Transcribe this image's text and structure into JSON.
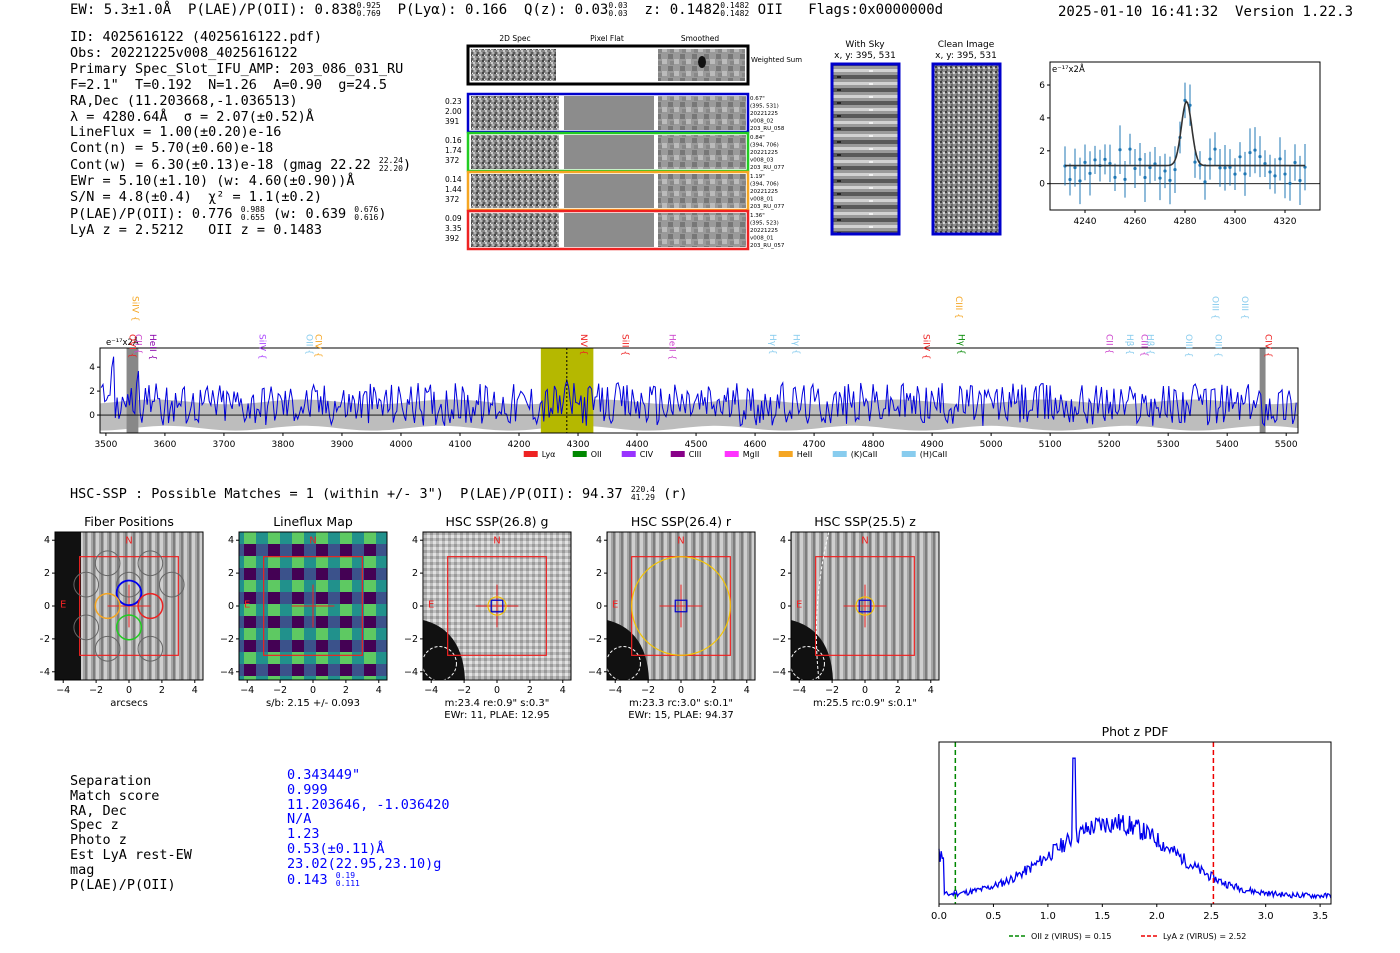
{
  "header": {
    "ew": "EW: 5.3±1.0Å",
    "plae_label": "P(LAE)/P(OII):",
    "plae_val": "0.838",
    "plae_hi": "0.925",
    "plae_lo": "0.769",
    "plya": "P(Lyα): 0.166",
    "qz_label": "Q(z): 0.03",
    "qz_hi": "0.03",
    "qz_lo": "0.03",
    "z_label": "z: 0.1482",
    "z_hi": "0.1482",
    "z_lo": "0.1482",
    "z_line": "OII",
    "flags": "Flags:0x0000000d",
    "datetime": "2025-01-10 16:41:32",
    "version": "Version 1.22.3"
  },
  "info": {
    "id": "ID: 4025616122 (4025616122.pdf)",
    "obs": "Obs: 20221225v008_4025616122",
    "primary": "Primary Spec_Slot_IFU_AMP: 203_086_031_RU",
    "params": "F=2.1\"  T=0.192  N=1.26  A=0.90  g=24.5",
    "radec": "RA,Dec (11.203668,-1.036513)",
    "lambda": "λ = 4280.64Å  σ = 2.07(±0.52)Å",
    "lineflux": "LineFlux = 1.00(±0.20)e-16",
    "contn": "Cont(n) = 5.70(±0.60)e-18",
    "contw": "Cont(w) = 6.30(±0.13)e-18 (gmag 22.22",
    "contw_hi": "22.24",
    "contw_lo": "22.20",
    "contw_end": ")",
    "ewr": "EWr = 5.10(±1.10) (w: 4.60(±0.90))Å",
    "sn": "S/N = 4.8(±0.4)  χ² = 1.1(±0.2)",
    "plae": "P(LAE)/P(OII): 0.776",
    "plae_hi": "0.988",
    "plae_lo": "0.655",
    "plae_w": "(w: 0.639",
    "plae_w_hi": "0.676",
    "plae_w_lo": "0.616",
    "plae_w_end": ")",
    "lyaz": "LyA z = 2.5212   OII z = 0.1483"
  },
  "cutouts": {
    "col_headers": [
      "2D Spec",
      "Pixel Flat",
      "Smoothed"
    ],
    "weighted_sum": "Weighted Sum",
    "rows": [
      {
        "left": [
          "0.23",
          "2.00",
          "391"
        ],
        "right": [
          "0.67\"",
          "(395, 531)",
          "20221225",
          "v008_02",
          "203_RU_058"
        ],
        "color": "#0000cc"
      },
      {
        "left": [
          "0.16",
          "1.74",
          "372"
        ],
        "right": [
          "0.84\"",
          "(394, 706)",
          "20221225",
          "v008_03",
          "203_RU_077"
        ],
        "color": "#22cc22"
      },
      {
        "left": [
          "0.14",
          "1.44",
          "372"
        ],
        "right": [
          "1.19\"",
          "(394, 706)",
          "20221225",
          "v008_01",
          "203_RU_077"
        ],
        "color": "#f5a623"
      },
      {
        "left": [
          "0.09",
          "3.35",
          "392"
        ],
        "right": [
          "1.36\"",
          "(395, 523)",
          "20221225",
          "v008_01",
          "203_RU_057"
        ],
        "color": "#ee2222"
      }
    ],
    "with_sky": "With Sky",
    "with_sky_xy": "x, y: 395, 531",
    "clean": "Clean Image",
    "clean_xy": "x, y: 395, 531"
  },
  "line_fit": {
    "ylabel": "e⁻¹⁷x2Å",
    "xticks": [
      4240,
      4260,
      4280,
      4300,
      4320
    ],
    "yticks": [
      0,
      2,
      4,
      6
    ],
    "xlim": [
      4226,
      4334
    ],
    "ylim": [
      -1.6,
      7.4
    ],
    "continuum": 1.1,
    "peak_x": 4280.6,
    "peak_amp": 3.9,
    "sigma": 2.07
  },
  "spectrum": {
    "ylabel": "e⁻¹⁷x2Å",
    "xticks": [
      3500,
      3600,
      3700,
      3800,
      3900,
      4000,
      4100,
      4200,
      4300,
      4400,
      4500,
      4600,
      4700,
      4800,
      4900,
      5000,
      5100,
      5200,
      5300,
      5400,
      5500
    ],
    "yticks": [
      0,
      2,
      4
    ],
    "xlim": [
      3490,
      5520
    ],
    "ylim": [
      -1.5,
      5.6
    ],
    "highlight_range": [
      4237,
      4326
    ],
    "line_center": 4281,
    "masked": [
      [
        3535,
        3555
      ],
      [
        5455,
        5465
      ]
    ],
    "line_marks": [
      {
        "label": "CII",
        "x": 3545,
        "color": "#cc44cc",
        "tier": 2
      },
      {
        "label": "SiIV",
        "x": 3540,
        "color": "#f5a623",
        "tier": 1
      },
      {
        "label": "OVI",
        "x": 3535,
        "color": "#ee2222",
        "tier": 2
      },
      {
        "label": "HeII",
        "x": 3570,
        "color": "#8800aa",
        "tier": 2
      },
      {
        "label": "SiIV",
        "x": 3755,
        "color": "#aa44ff",
        "tier": 2
      },
      {
        "label": "OII",
        "x": 3835,
        "color": "#88ccee",
        "tier": 2
      },
      {
        "label": "CIV",
        "x": 3850,
        "color": "#f5a623",
        "tier": 2
      },
      {
        "label": "NV",
        "x": 4300,
        "color": "#ee2222",
        "tier": 2
      },
      {
        "label": "SiII",
        "x": 4370,
        "color": "#ee2222",
        "tier": 2
      },
      {
        "label": "HeII",
        "x": 4450,
        "color": "#cc44cc",
        "tier": 2
      },
      {
        "label": "Hγ",
        "x": 4620,
        "color": "#88ccee",
        "tier": 2
      },
      {
        "label": "Hγ",
        "x": 4660,
        "color": "#88ccee",
        "tier": 2
      },
      {
        "label": "SiIV",
        "x": 4880,
        "color": "#ee2222",
        "tier": 2
      },
      {
        "label": "CIII",
        "x": 4935,
        "color": "#f5a623",
        "tier": 1
      },
      {
        "label": "Hγ",
        "x": 4940,
        "color": "#008800",
        "tier": 2
      },
      {
        "label": "CII",
        "x": 5190,
        "color": "#cc44cc",
        "tier": 2
      },
      {
        "label": "Hβ",
        "x": 5225,
        "color": "#88ccee",
        "tier": 2
      },
      {
        "label": "CIII",
        "x": 5250,
        "color": "#cc44cc",
        "tier": 2
      },
      {
        "label": "Hβ",
        "x": 5260,
        "color": "#88ccee",
        "tier": 2
      },
      {
        "label": "OIII",
        "x": 5325,
        "color": "#88ccee",
        "tier": 2
      },
      {
        "label": "OIII",
        "x": 5370,
        "color": "#88ccee",
        "tier": 1
      },
      {
        "label": "OIII",
        "x": 5375,
        "color": "#88ccee",
        "tier": 2
      },
      {
        "label": "OIII",
        "x": 5420,
        "color": "#88ccee",
        "tier": 1
      },
      {
        "label": "CIV",
        "x": 5460,
        "color": "#ee2222",
        "tier": 2
      }
    ],
    "legend": [
      {
        "label": "Lyα",
        "color": "#ee2222"
      },
      {
        "label": "OII",
        "color": "#008800"
      },
      {
        "label": "CIV",
        "color": "#9933ff"
      },
      {
        "label": "CIII",
        "color": "#880088"
      },
      {
        "label": "MgII",
        "color": "#ff33ff"
      },
      {
        "label": "HeII",
        "color": "#f5a623"
      },
      {
        "label": "(K)CaII",
        "color": "#88ccee"
      },
      {
        "label": "(H)CaII",
        "color": "#88ccee"
      }
    ]
  },
  "hsc": {
    "line": "HSC-SSP : Possible Matches = 1 (within +/- 3\")  P(LAE)/P(OII): 94.37",
    "hi": "220.4",
    "lo": "41.29",
    "band": "(r)"
  },
  "panels": [
    {
      "title": "Fiber Positions",
      "sub1": "arcsecs",
      "sub2": ""
    },
    {
      "title": "Lineflux Map",
      "sub1": "s/b: 2.15 +/- 0.093",
      "sub2": ""
    },
    {
      "title": "HSC SSP(26.8) g",
      "sub1": "m:23.4  re:0.9\"  s:0.3\"",
      "sub2": "EWr: 11, PLAE: 12.95"
    },
    {
      "title": "HSC SSP(26.4) r",
      "sub1": "m:23.3 rc:3.0\"  s:0.1\"",
      "sub2": "EWr: 15, PLAE: 94.37"
    },
    {
      "title": "HSC SSP(25.5) z",
      "sub1": "m:25.5 rc:0.9\"  s:0.1\"",
      "sub2": ""
    }
  ],
  "panel_ticks": [
    -4,
    -2,
    0,
    2,
    4
  ],
  "compass": {
    "n": "N",
    "e": "E"
  },
  "separation": {
    "labels": [
      "Separation",
      "Match score",
      "RA, Dec",
      "Spec z",
      "Photo z",
      "Est LyA rest-EW",
      "mag",
      "P(LAE)/P(OII)"
    ],
    "values": [
      "0.343449\"",
      "0.999",
      "11.203646, -1.036420",
      "N/A",
      "1.23",
      "0.53(±0.11)Å",
      "23.02(22.95,23.10)g",
      "0.143"
    ],
    "plae_hi": "0.19",
    "plae_lo": "0.111"
  },
  "photz": {
    "title": "Phot z PDF",
    "xticks": [
      0.0,
      0.5,
      1.0,
      1.5,
      2.0,
      2.5,
      3.0,
      3.5
    ],
    "xlim": [
      0,
      3.6
    ],
    "oii_z": 0.15,
    "lya_z": 2.52,
    "legend_oii": "OII z (VIRUS) = 0.15",
    "legend_lya": "LyA z (VIRUS) = 2.52",
    "oii_color": "#008800",
    "lya_color": "#ee0000"
  }
}
